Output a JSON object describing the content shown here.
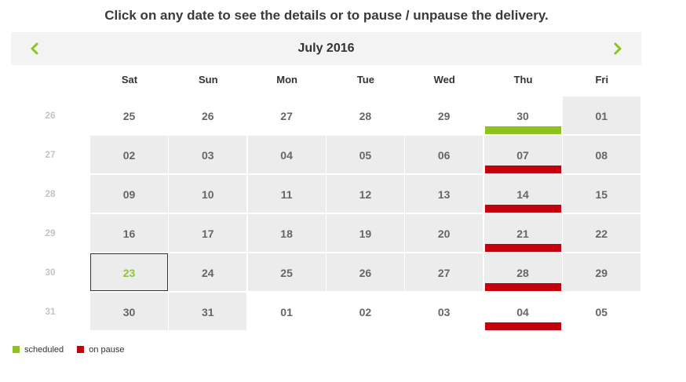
{
  "instruction": "Click on any date to see the details or to pause / unpause the delivery.",
  "calendar": {
    "month_title": "July 2016",
    "weekdays": [
      "Sat",
      "Sun",
      "Mon",
      "Tue",
      "Wed",
      "Thu",
      "Fri"
    ],
    "weeks": [
      {
        "num": "26",
        "days": [
          {
            "label": "25",
            "in_month": false,
            "status": null
          },
          {
            "label": "26",
            "in_month": false,
            "status": null
          },
          {
            "label": "27",
            "in_month": false,
            "status": null
          },
          {
            "label": "28",
            "in_month": false,
            "status": null
          },
          {
            "label": "29",
            "in_month": false,
            "status": null
          },
          {
            "label": "30",
            "in_month": false,
            "status": "scheduled"
          },
          {
            "label": "01",
            "in_month": true,
            "status": null
          }
        ]
      },
      {
        "num": "27",
        "days": [
          {
            "label": "02",
            "in_month": true,
            "status": null
          },
          {
            "label": "03",
            "in_month": true,
            "status": null
          },
          {
            "label": "04",
            "in_month": true,
            "status": null
          },
          {
            "label": "05",
            "in_month": true,
            "status": null
          },
          {
            "label": "06",
            "in_month": true,
            "status": null
          },
          {
            "label": "07",
            "in_month": true,
            "status": "paused"
          },
          {
            "label": "08",
            "in_month": true,
            "status": null
          }
        ]
      },
      {
        "num": "28",
        "days": [
          {
            "label": "09",
            "in_month": true,
            "status": null
          },
          {
            "label": "10",
            "in_month": true,
            "status": null
          },
          {
            "label": "11",
            "in_month": true,
            "status": null
          },
          {
            "label": "12",
            "in_month": true,
            "status": null
          },
          {
            "label": "13",
            "in_month": true,
            "status": null
          },
          {
            "label": "14",
            "in_month": true,
            "status": "paused"
          },
          {
            "label": "15",
            "in_month": true,
            "status": null
          }
        ]
      },
      {
        "num": "29",
        "days": [
          {
            "label": "16",
            "in_month": true,
            "status": null
          },
          {
            "label": "17",
            "in_month": true,
            "status": null
          },
          {
            "label": "18",
            "in_month": true,
            "status": null
          },
          {
            "label": "19",
            "in_month": true,
            "status": null
          },
          {
            "label": "20",
            "in_month": true,
            "status": null
          },
          {
            "label": "21",
            "in_month": true,
            "status": "paused"
          },
          {
            "label": "22",
            "in_month": true,
            "status": null
          }
        ]
      },
      {
        "num": "30",
        "days": [
          {
            "label": "23",
            "in_month": true,
            "status": null,
            "today": true
          },
          {
            "label": "24",
            "in_month": true,
            "status": null
          },
          {
            "label": "25",
            "in_month": true,
            "status": null
          },
          {
            "label": "26",
            "in_month": true,
            "status": null
          },
          {
            "label": "27",
            "in_month": true,
            "status": null
          },
          {
            "label": "28",
            "in_month": true,
            "status": "paused"
          },
          {
            "label": "29",
            "in_month": true,
            "status": null
          }
        ]
      },
      {
        "num": "31",
        "days": [
          {
            "label": "30",
            "in_month": true,
            "status": null
          },
          {
            "label": "31",
            "in_month": true,
            "status": null
          },
          {
            "label": "01",
            "in_month": false,
            "status": null
          },
          {
            "label": "02",
            "in_month": false,
            "status": null
          },
          {
            "label": "03",
            "in_month": false,
            "status": null
          },
          {
            "label": "04",
            "in_month": false,
            "status": "paused"
          },
          {
            "label": "05",
            "in_month": false,
            "status": null
          }
        ]
      }
    ]
  },
  "legend": {
    "scheduled_label": "scheduled",
    "paused_label": "on pause"
  },
  "colors": {
    "accent_green": "#8dc21f",
    "pause_red": "#c4000f",
    "cell_gray": "#ececec"
  },
  "icons": {
    "prev": "chevron-left-icon",
    "next": "chevron-right-icon"
  }
}
